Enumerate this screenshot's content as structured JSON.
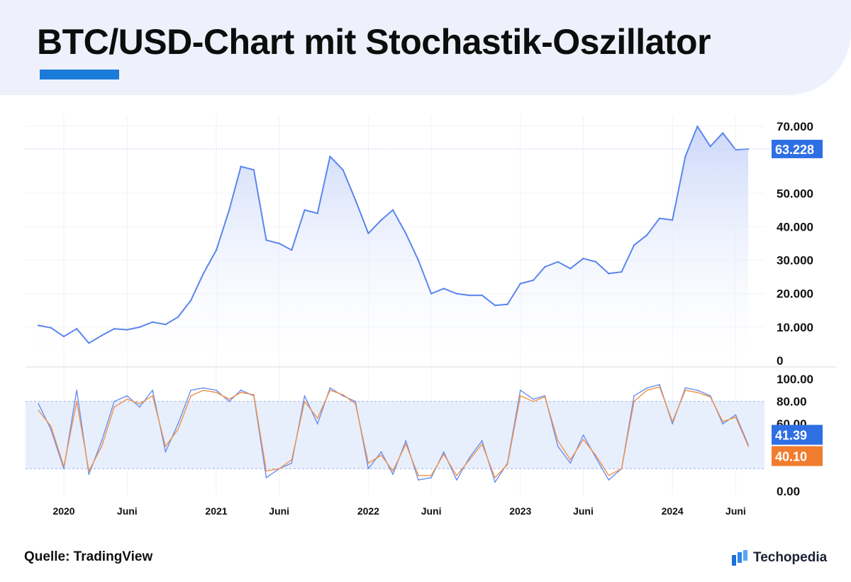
{
  "header": {
    "title": "BTC/USD-Chart mit Stochastik-Oszillator"
  },
  "footer": {
    "source": "Quelle: TradingView",
    "brand": "Techopedia",
    "brand_icon": "techopedia-logo-icon"
  },
  "colors": {
    "price_line": "#5b86ee",
    "price_fill": "#dbe4fb",
    "stoch_k": "#6a8ff0",
    "stoch_d": "#f0924a",
    "stoch_band": "#e8effc",
    "last_price_badge": "#2f6fe4",
    "k_badge": "#2f6fe4",
    "d_badge": "#f07d2e",
    "accent": "#1b7bd8"
  },
  "chart_data": [
    {
      "type": "area",
      "title": "",
      "series": [
        {
          "x": [
            "2019-11",
            "2019-12",
            "2020-01",
            "2020-02",
            "2020-03",
            "2020-04",
            "2020-05",
            "2020-06",
            "2020-07",
            "2020-08",
            "2020-09",
            "2020-10",
            "2020-11",
            "2020-12",
            "2021-01",
            "2021-02",
            "2021-03",
            "2021-04",
            "2021-05",
            "2021-06",
            "2021-07",
            "2021-08",
            "2021-09",
            "2021-10",
            "2021-11",
            "2021-12",
            "2022-01",
            "2022-02",
            "2022-03",
            "2022-04",
            "2022-05",
            "2022-06",
            "2022-07",
            "2022-08",
            "2022-09",
            "2022-10",
            "2022-11",
            "2022-12",
            "2023-01",
            "2023-02",
            "2023-03",
            "2023-04",
            "2023-05",
            "2023-06",
            "2023-07",
            "2023-08",
            "2023-09",
            "2023-10",
            "2023-11",
            "2023-12",
            "2024-01",
            "2024-02",
            "2024-03",
            "2024-04",
            "2024-05",
            "2024-06",
            "2024-07"
          ],
          "values": [
            10500,
            9800,
            7200,
            9500,
            5200,
            7500,
            9500,
            9200,
            10000,
            11500,
            10800,
            13000,
            18000,
            26000,
            33000,
            45000,
            58000,
            57000,
            36000,
            35000,
            33000,
            45000,
            44000,
            61000,
            57000,
            48000,
            38000,
            42000,
            45000,
            38000,
            30000,
            20000,
            21500,
            20000,
            19500,
            19500,
            16500,
            16800,
            23000,
            24000,
            28000,
            29500,
            27500,
            30500,
            29500,
            26000,
            26500,
            34500,
            37500,
            42500,
            42000,
            61000,
            70000,
            64000,
            68000,
            63000,
            63228
          ]
        }
      ],
      "y_ticks": [
        "70.000",
        "50.000",
        "40.000",
        "30.000",
        "20.000",
        "10.000",
        "0"
      ],
      "ylim": [
        0,
        70000
      ],
      "last_value_label": "63.228"
    },
    {
      "type": "line",
      "title": "",
      "x": [
        "2019-11",
        "2019-12",
        "2020-01",
        "2020-02",
        "2020-03",
        "2020-04",
        "2020-05",
        "2020-06",
        "2020-07",
        "2020-08",
        "2020-09",
        "2020-10",
        "2020-11",
        "2020-12",
        "2021-01",
        "2021-02",
        "2021-03",
        "2021-04",
        "2021-05",
        "2021-06",
        "2021-07",
        "2021-08",
        "2021-09",
        "2021-10",
        "2021-11",
        "2021-12",
        "2022-01",
        "2022-02",
        "2022-03",
        "2022-04",
        "2022-05",
        "2022-06",
        "2022-07",
        "2022-08",
        "2022-09",
        "2022-10",
        "2022-11",
        "2022-12",
        "2023-01",
        "2023-02",
        "2023-03",
        "2023-04",
        "2023-05",
        "2023-06",
        "2023-07",
        "2023-08",
        "2023-09",
        "2023-10",
        "2023-11",
        "2023-12",
        "2024-01",
        "2024-02",
        "2024-03",
        "2024-04",
        "2024-05",
        "2024-06",
        "2024-07"
      ],
      "series": [
        {
          "values": [
            78,
            55,
            20,
            90,
            15,
            45,
            80,
            85,
            75,
            90,
            35,
            60,
            90,
            92,
            90,
            80,
            90,
            85,
            12,
            20,
            25,
            85,
            60,
            92,
            85,
            80,
            20,
            35,
            15,
            45,
            10,
            12,
            35,
            10,
            30,
            45,
            8,
            25,
            90,
            82,
            85,
            40,
            25,
            50,
            30,
            10,
            20,
            85,
            92,
            95,
            60,
            92,
            90,
            85,
            60,
            68,
            41.39
          ]
        },
        {
          "values": [
            72,
            58,
            22,
            80,
            18,
            40,
            75,
            82,
            78,
            85,
            40,
            55,
            85,
            90,
            88,
            82,
            88,
            86,
            18,
            20,
            28,
            80,
            65,
            90,
            86,
            78,
            25,
            32,
            18,
            42,
            14,
            14,
            33,
            14,
            28,
            42,
            12,
            24,
            85,
            80,
            84,
            45,
            28,
            46,
            32,
            14,
            20,
            80,
            90,
            93,
            62,
            90,
            88,
            84,
            62,
            66,
            40.1
          ]
        }
      ],
      "y_ticks": [
        "100.00",
        "80.00",
        "60.00",
        "0.00"
      ],
      "ylim": [
        0,
        100
      ],
      "reference_band": [
        20,
        80
      ],
      "k_label": "41.39",
      "d_label": "40.10"
    }
  ],
  "x_axis_labels": [
    {
      "label": "2020",
      "date": "2020-01"
    },
    {
      "label": "Juni",
      "date": "2020-06"
    },
    {
      "label": "2021",
      "date": "2021-01"
    },
    {
      "label": "Juni",
      "date": "2021-06"
    },
    {
      "label": "2022",
      "date": "2022-01"
    },
    {
      "label": "Juni",
      "date": "2022-06"
    },
    {
      "label": "2023",
      "date": "2023-01"
    },
    {
      "label": "Juni",
      "date": "2023-06"
    },
    {
      "label": "2024",
      "date": "2024-01"
    },
    {
      "label": "Juni",
      "date": "2024-06"
    }
  ]
}
